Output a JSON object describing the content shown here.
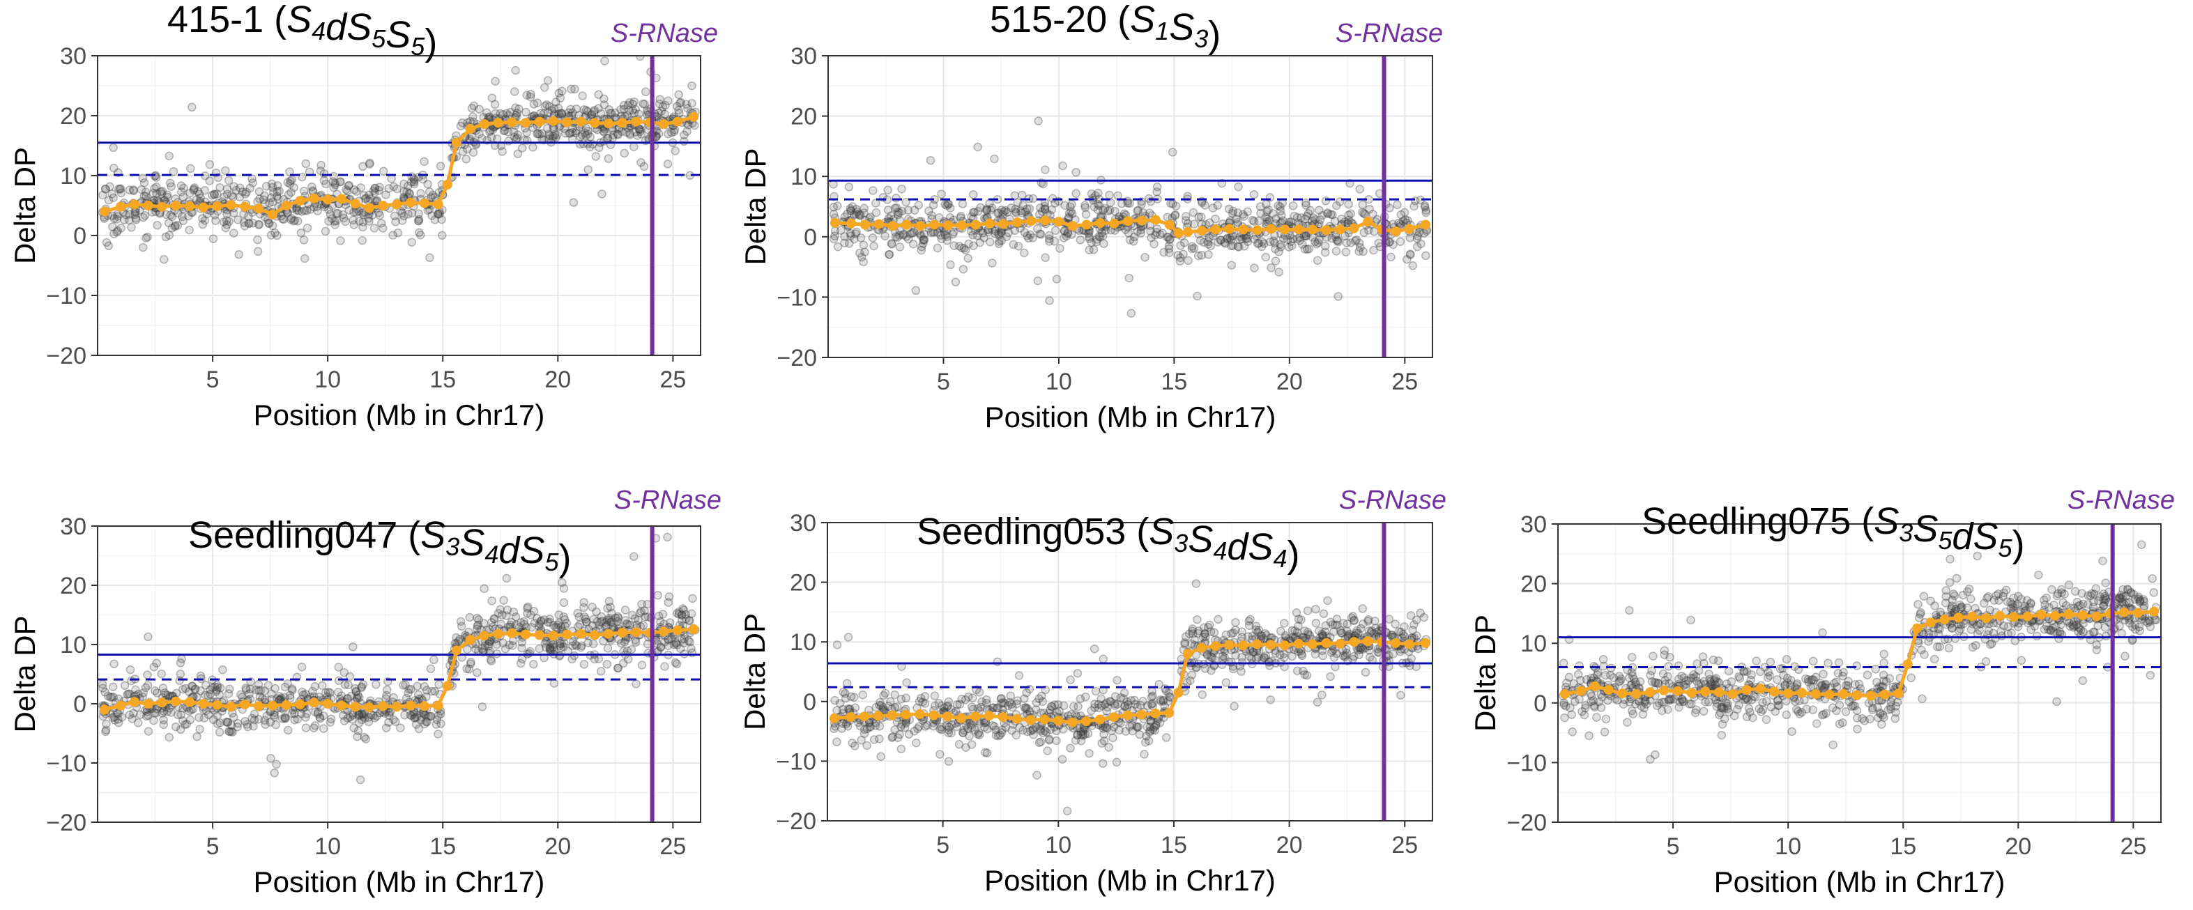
{
  "colors": {
    "points": "#3a3a3a",
    "trend": "#F5A623",
    "threshold": "#1010B0",
    "srnase": "#7030A0",
    "grid_major": "#e6e6e6",
    "grid_minor": "#f3f3f3"
  },
  "chart_data": [
    {
      "type": "scatter",
      "title_name": "415-1",
      "genotype": [
        {
          "t": "S",
          "s": "4"
        },
        {
          "t": "dS",
          "s": "5"
        },
        {
          "t": "S",
          "s": "5"
        }
      ],
      "srnase_label": "S-RNase",
      "srnase_position_mb": 24.1,
      "xlabel": "Position (Mb in Chr17)",
      "ylabel": "Delta DP",
      "xlim": [
        0,
        26.2
      ],
      "ylim": [
        -20,
        30
      ],
      "xticks": [
        5,
        10,
        15,
        20,
        25
      ],
      "yticks": [
        -20,
        -10,
        0,
        10,
        20,
        30
      ],
      "threshold_solid": 15.5,
      "threshold_dashed": 10.1,
      "trend_x": [
        0.3,
        1.0,
        1.6,
        2.2,
        2.8,
        3.4,
        4.0,
        4.6,
        5.2,
        5.8,
        6.4,
        7.0,
        7.6,
        8.2,
        8.8,
        9.4,
        10.0,
        10.6,
        11.2,
        11.8,
        12.4,
        13.0,
        13.6,
        14.2,
        14.8,
        15.2,
        15.6,
        16.2,
        16.8,
        17.4,
        18.0,
        18.6,
        19.2,
        19.8,
        20.4,
        21.0,
        21.6,
        22.2,
        22.8,
        23.4,
        24.0,
        24.6,
        25.2,
        25.9
      ],
      "trend_y": [
        4.0,
        4.8,
        5.2,
        5.0,
        4.8,
        5.0,
        4.9,
        4.7,
        4.9,
        5.1,
        4.8,
        4.5,
        3.5,
        5.0,
        5.8,
        6.2,
        6.0,
        6.1,
        5.3,
        4.6,
        5.0,
        5.2,
        5.5,
        5.4,
        5.2,
        8.5,
        15.5,
        17.8,
        18.6,
        18.8,
        18.9,
        18.8,
        19.0,
        19.1,
        18.9,
        19.0,
        18.8,
        18.7,
        18.8,
        19.0,
        18.9,
        18.6,
        19.0,
        19.8
      ],
      "scatter_segments": [
        {
          "x0": 0.2,
          "x1": 15.0,
          "spread": 2.4,
          "count": 520
        },
        {
          "x0": 15.3,
          "x1": 26.0,
          "spread": 2.2,
          "count": 420
        }
      ]
    },
    {
      "type": "scatter",
      "title_name": "515-20",
      "genotype": [
        {
          "t": "S",
          "s": "1"
        },
        {
          "t": "S",
          "s": "3"
        }
      ],
      "srnase_label": "S-RNase",
      "srnase_position_mb": 24.1,
      "xlabel": "Position (Mb in Chr17)",
      "ylabel": "Delta DP",
      "xlim": [
        0,
        26.2
      ],
      "ylim": [
        -20,
        30
      ],
      "xticks": [
        5,
        10,
        15,
        20,
        25
      ],
      "yticks": [
        -20,
        -10,
        0,
        10,
        20,
        30
      ],
      "threshold_solid": 9.3,
      "threshold_dashed": 6.2,
      "trend_x": [
        0.3,
        1.0,
        1.6,
        2.2,
        2.8,
        3.4,
        4.0,
        4.6,
        5.2,
        5.8,
        6.4,
        7.0,
        7.6,
        8.2,
        8.8,
        9.4,
        10.0,
        10.6,
        11.2,
        11.8,
        12.4,
        13.0,
        13.6,
        14.2,
        14.8,
        15.2,
        15.6,
        16.2,
        16.8,
        17.4,
        18.0,
        18.6,
        19.2,
        19.8,
        20.4,
        21.0,
        21.6,
        22.2,
        22.8,
        23.4,
        24.0,
        24.6,
        25.2,
        25.9
      ],
      "trend_y": [
        2.3,
        2.2,
        2.0,
        2.1,
        1.8,
        2.0,
        1.8,
        2.0,
        1.9,
        1.9,
        2.0,
        2.2,
        2.1,
        2.4,
        2.6,
        2.7,
        2.5,
        1.8,
        2.0,
        2.3,
        2.2,
        2.6,
        2.7,
        2.8,
        2.0,
        0.6,
        0.8,
        1.0,
        1.2,
        1.3,
        1.2,
        1.1,
        1.3,
        1.2,
        1.2,
        1.2,
        1.1,
        1.2,
        1.4,
        2.5,
        1.2,
        0.9,
        1.3,
        2.0
      ],
      "scatter_segments": [
        {
          "x0": 0.2,
          "x1": 26.0,
          "spread": 2.3,
          "count": 860
        }
      ]
    },
    {
      "type": "scatter",
      "title_name": "Seedling047",
      "genotype": [
        {
          "t": "S",
          "s": "3"
        },
        {
          "t": "S",
          "s": "4"
        },
        {
          "t": "dS",
          "s": "5"
        }
      ],
      "srnase_label": "S-RNase",
      "srnase_position_mb": 24.1,
      "xlabel": "Position (Mb in Chr17)",
      "ylabel": "Delta DP",
      "xlim": [
        0,
        26.2
      ],
      "ylim": [
        -20,
        30
      ],
      "xticks": [
        5,
        10,
        15,
        20,
        25
      ],
      "yticks": [
        -20,
        -10,
        0,
        10,
        20,
        30
      ],
      "threshold_solid": 8.3,
      "threshold_dashed": 4.1,
      "trend_x": [
        0.3,
        1.0,
        1.6,
        2.2,
        2.8,
        3.4,
        4.0,
        4.6,
        5.2,
        5.8,
        6.4,
        7.0,
        7.6,
        8.2,
        8.8,
        9.4,
        10.0,
        10.6,
        11.2,
        11.8,
        12.4,
        13.0,
        13.6,
        14.2,
        14.8,
        15.2,
        15.6,
        16.2,
        16.8,
        17.4,
        18.0,
        18.6,
        19.2,
        19.8,
        20.4,
        21.0,
        21.6,
        22.2,
        22.8,
        23.4,
        24.0,
        24.6,
        25.2,
        25.9
      ],
      "trend_y": [
        -1.0,
        -0.3,
        0.3,
        0.0,
        0.2,
        0.4,
        0.3,
        0.0,
        -0.2,
        -0.5,
        -0.1,
        -0.4,
        -0.3,
        -0.2,
        -0.1,
        0.2,
        0.0,
        -0.3,
        -0.5,
        -0.6,
        -0.4,
        -0.5,
        -0.3,
        -0.4,
        -0.3,
        3.0,
        9.0,
        10.8,
        11.5,
        11.8,
        11.9,
        11.7,
        11.6,
        11.5,
        11.7,
        11.8,
        11.6,
        11.8,
        12.0,
        12.1,
        12.0,
        12.2,
        12.4,
        12.6
      ],
      "scatter_segments": [
        {
          "x0": 0.2,
          "x1": 15.0,
          "spread": 2.2,
          "count": 520
        },
        {
          "x0": 15.3,
          "x1": 26.0,
          "spread": 2.4,
          "count": 420
        }
      ]
    },
    {
      "type": "scatter",
      "title_name": "Seedling053",
      "genotype": [
        {
          "t": "S",
          "s": "3"
        },
        {
          "t": "S",
          "s": "4"
        },
        {
          "t": "dS",
          "s": "4"
        }
      ],
      "srnase_label": "S-RNase",
      "srnase_position_mb": 24.1,
      "xlabel": "Position (Mb in Chr17)",
      "ylabel": "Delta DP",
      "xlim": [
        0,
        26.2
      ],
      "ylim": [
        -20,
        30
      ],
      "xticks": [
        5,
        10,
        15,
        20,
        25
      ],
      "yticks": [
        -20,
        -10,
        0,
        10,
        20,
        30
      ],
      "threshold_solid": 6.4,
      "threshold_dashed": 2.4,
      "trend_x": [
        0.3,
        1.0,
        1.6,
        2.2,
        2.8,
        3.4,
        4.0,
        4.6,
        5.2,
        5.8,
        6.4,
        7.0,
        7.6,
        8.2,
        8.8,
        9.4,
        10.0,
        10.6,
        11.2,
        11.8,
        12.4,
        13.0,
        13.6,
        14.2,
        14.8,
        15.2,
        15.6,
        16.2,
        16.8,
        17.4,
        18.0,
        18.6,
        19.2,
        19.8,
        20.4,
        21.0,
        21.6,
        22.2,
        22.8,
        23.4,
        24.0,
        24.6,
        25.2,
        25.9
      ],
      "trend_y": [
        -2.8,
        -2.6,
        -2.5,
        -2.4,
        -2.3,
        -2.2,
        -2.1,
        -2.3,
        -2.5,
        -2.8,
        -2.5,
        -2.4,
        -2.6,
        -2.9,
        -3.1,
        -3.0,
        -3.2,
        -3.5,
        -3.3,
        -3.0,
        -2.6,
        -2.3,
        -2.2,
        -2.0,
        -1.9,
        1.5,
        8.0,
        9.0,
        9.3,
        9.5,
        9.4,
        9.6,
        9.5,
        9.4,
        9.7,
        9.6,
        9.8,
        9.7,
        10.0,
        10.1,
        10.0,
        9.8,
        9.6,
        9.8
      ],
      "scatter_segments": [
        {
          "x0": 0.2,
          "x1": 15.0,
          "spread": 2.2,
          "count": 520
        },
        {
          "x0": 15.3,
          "x1": 26.0,
          "spread": 2.2,
          "count": 420
        }
      ]
    },
    {
      "type": "scatter",
      "title_name": "Seedling075",
      "genotype": [
        {
          "t": "S",
          "s": "3"
        },
        {
          "t": "S",
          "s": "5"
        },
        {
          "t": "dS",
          "s": "5"
        }
      ],
      "srnase_label": "S-RNase",
      "srnase_position_mb": 24.1,
      "xlabel": "Position (Mb in Chr17)",
      "ylabel": "Delta DP",
      "xlim": [
        0,
        26.2
      ],
      "ylim": [
        -20,
        30
      ],
      "xticks": [
        5,
        10,
        15,
        20,
        25
      ],
      "yticks": [
        -20,
        -10,
        0,
        10,
        20,
        30
      ],
      "threshold_solid": 11.0,
      "threshold_dashed": 6.0,
      "trend_x": [
        0.3,
        1.0,
        1.6,
        2.2,
        2.8,
        3.4,
        4.0,
        4.6,
        5.2,
        5.8,
        6.4,
        7.0,
        7.6,
        8.2,
        8.8,
        9.4,
        10.0,
        10.6,
        11.2,
        11.8,
        12.4,
        13.0,
        13.6,
        14.2,
        14.8,
        15.2,
        15.6,
        16.2,
        16.8,
        17.4,
        18.0,
        18.6,
        19.2,
        19.8,
        20.4,
        21.0,
        21.6,
        22.2,
        22.8,
        23.4,
        24.0,
        24.6,
        25.2,
        25.9
      ],
      "trend_y": [
        1.5,
        2.0,
        2.8,
        2.2,
        1.6,
        1.5,
        1.8,
        2.1,
        2.0,
        1.7,
        1.9,
        1.8,
        1.5,
        2.2,
        2.4,
        1.9,
        1.6,
        1.7,
        1.5,
        1.4,
        1.5,
        1.3,
        1.2,
        1.4,
        1.6,
        6.5,
        12.5,
        13.5,
        14.0,
        14.3,
        14.5,
        14.2,
        14.6,
        14.4,
        14.5,
        14.8,
        14.6,
        14.9,
        14.7,
        14.5,
        15.0,
        15.2,
        15.1,
        15.3
      ],
      "scatter_segments": [
        {
          "x0": 0.2,
          "x1": 15.0,
          "spread": 2.2,
          "count": 520
        },
        {
          "x0": 15.3,
          "x1": 26.0,
          "spread": 2.4,
          "count": 420
        }
      ]
    }
  ]
}
